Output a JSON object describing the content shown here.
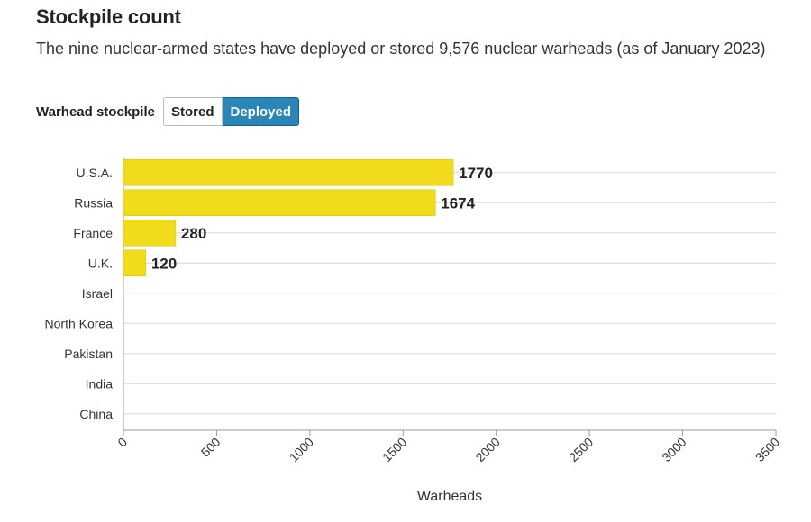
{
  "header": {
    "title": "Stockpile count",
    "subtitle": "The nine nuclear-armed states have deployed or stored 9,576 nuclear warheads (as of January 2023)"
  },
  "controls": {
    "label": "Warhead stockpile",
    "options": [
      "Stored",
      "Deployed"
    ],
    "selected": "Deployed"
  },
  "colors": {
    "bar": "#f0dc1a",
    "active_button": "#2a86b8",
    "grid": "#d8d8d8"
  },
  "chart_data": {
    "type": "bar",
    "orientation": "horizontal",
    "categories": [
      "U.S.A.",
      "Russia",
      "France",
      "U.K.",
      "Israel",
      "North Korea",
      "Pakistan",
      "India",
      "China"
    ],
    "values": [
      1770,
      1674,
      280,
      120,
      0,
      0,
      0,
      0,
      0
    ],
    "value_labels": [
      "1770",
      "1674",
      "280",
      "120",
      "",
      "",
      "",
      "",
      ""
    ],
    "xlabel": "Warheads",
    "xlim": [
      0,
      3500
    ],
    "xticks": [
      0,
      500,
      1000,
      1500,
      2000,
      2500,
      3000,
      3500
    ],
    "grid": true
  }
}
